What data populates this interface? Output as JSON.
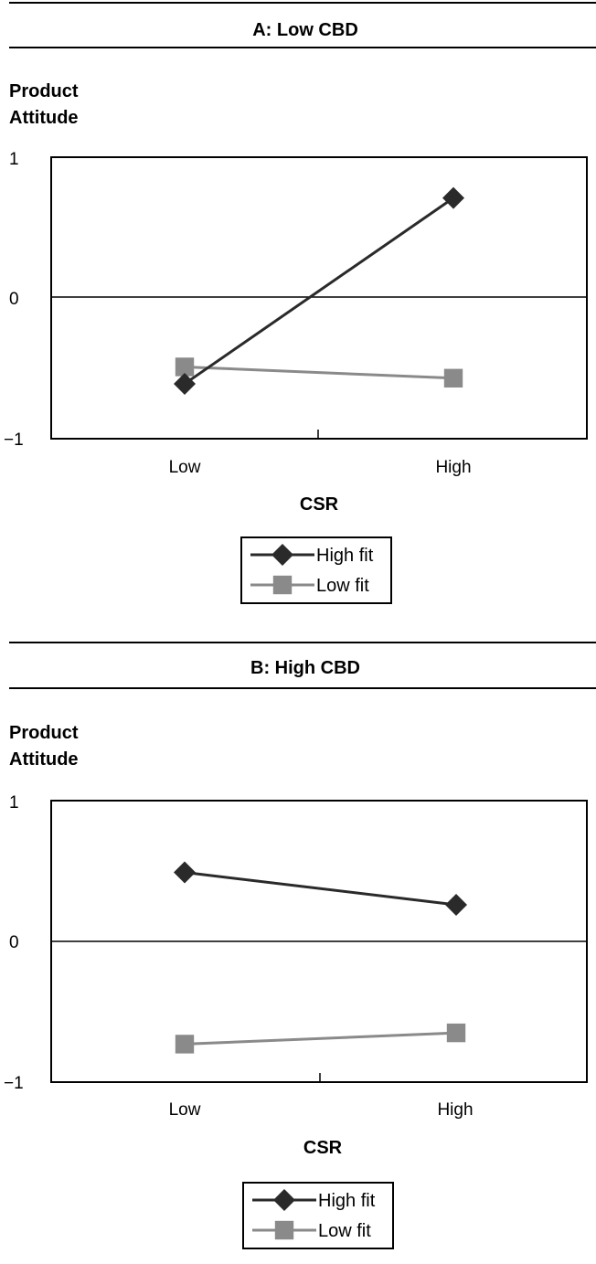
{
  "chart_data": [
    {
      "type": "line",
      "title": "A: Low CBD",
      "ylabel": [
        "Product",
        "Attitude"
      ],
      "xlabel": "CSR",
      "categories": [
        "Low",
        "High"
      ],
      "yticks": [
        "1",
        "0",
        "−1"
      ],
      "ylim": [
        -1,
        1
      ],
      "legend_position": "bottom-center",
      "series": [
        {
          "name": "High fit",
          "values": [
            -0.61,
            0.71
          ],
          "marker": "diamond",
          "color": "#2a2a2a"
        },
        {
          "name": "Low fit",
          "values": [
            -0.49,
            -0.57
          ],
          "marker": "square",
          "color": "#8a8a8a"
        }
      ]
    },
    {
      "type": "line",
      "title": "B: High CBD",
      "ylabel": [
        "Product",
        "Attitude"
      ],
      "xlabel": "CSR",
      "categories": [
        "Low",
        "High"
      ],
      "yticks": [
        "1",
        "0",
        "−1"
      ],
      "ylim": [
        -1,
        1
      ],
      "legend_position": "bottom-center",
      "series": [
        {
          "name": "High fit",
          "values": [
            0.49,
            0.26
          ],
          "marker": "diamond",
          "color": "#2a2a2a"
        },
        {
          "name": "Low fit",
          "values": [
            -0.73,
            -0.65
          ],
          "marker": "square",
          "color": "#8a8a8a"
        }
      ]
    }
  ]
}
